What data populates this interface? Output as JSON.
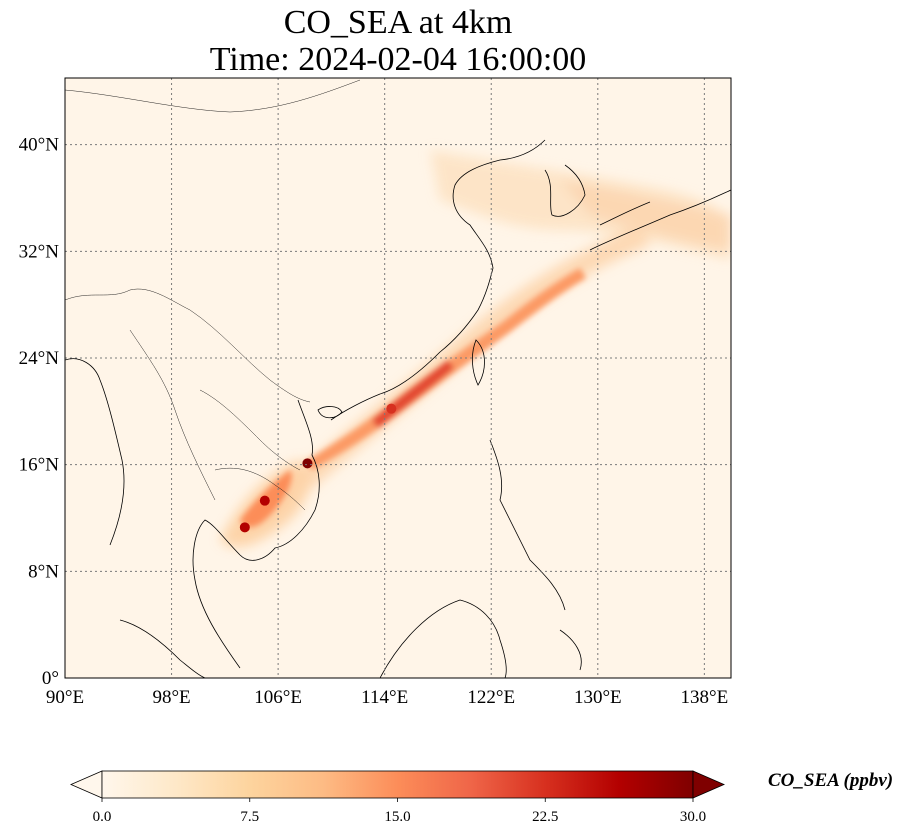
{
  "title": {
    "line1": "CO_SEA at 4km",
    "line2": "Time: 2024-02-04 16:00:00"
  },
  "map": {
    "lon_range": [
      90,
      140
    ],
    "lat_range": [
      0,
      45
    ],
    "lon_ticks": [
      "90°E",
      "98°E",
      "106°E",
      "114°E",
      "122°E",
      "130°E",
      "138°E"
    ],
    "lat_ticks": [
      "0°",
      "8°N",
      "16°N",
      "24°N",
      "32°N",
      "40°N"
    ],
    "gridlines": "dotted",
    "plume_hotspots": [
      {
        "lon": 108.2,
        "lat": 16.1,
        "value": 30
      },
      {
        "lon": 105.0,
        "lat": 13.3,
        "value": 28
      },
      {
        "lon": 103.5,
        "lat": 11.3,
        "value": 27
      },
      {
        "lon": 114.5,
        "lat": 20.2,
        "value": 22
      }
    ]
  },
  "colorbar": {
    "label": "CO_SEA (ppbv)",
    "min": 0.0,
    "max": 30.0,
    "ticks": [
      "0.0",
      "7.5",
      "15.0",
      "22.5",
      "30.0"
    ],
    "extend": "both",
    "colormap": "OrRd",
    "colors": [
      "#fff7ec",
      "#fee8c8",
      "#fdd49e",
      "#fdbb84",
      "#fc8d59",
      "#ef6548",
      "#d7301f",
      "#b30000",
      "#7f0000"
    ]
  }
}
